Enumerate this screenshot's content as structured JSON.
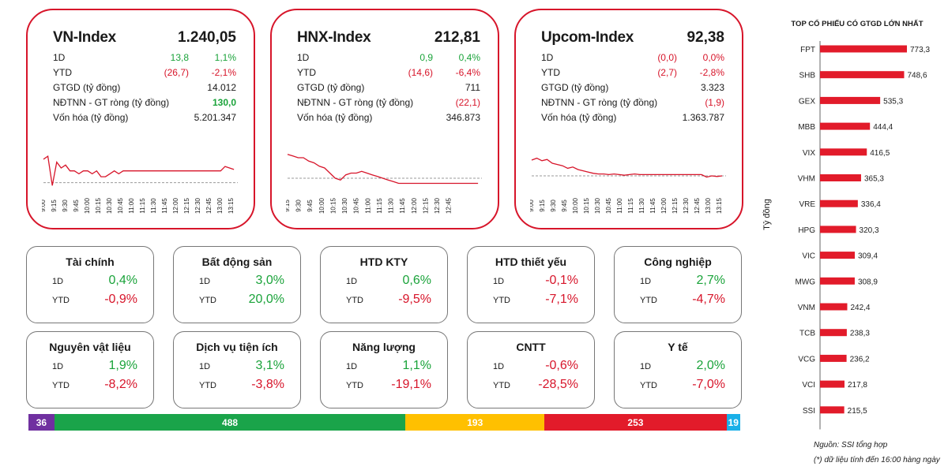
{
  "indices": [
    {
      "name": "VN-Index",
      "value": "1.240,05",
      "d1_label": "1D",
      "d1_change": "13,8",
      "d1_pct": "1,1%",
      "d1_dir": "pos",
      "ytd_label": "YTD",
      "ytd_change": "(26,7)",
      "ytd_pct": "-2,1%",
      "ytd_dir": "neg",
      "gtgd_label": "GTGD (tỷ đồng)",
      "gtgd": "14.012",
      "ndtnn_label": "NĐTNN - GT ròng (tỷ đồng)",
      "ndtnn": "130,0",
      "ndtnn_dir": "pos",
      "vonhoa_label": "Vốn hóa (tỷ đồng)",
      "vonhoa": "5.201.347",
      "times": [
        "9:00",
        "9:15",
        "9:30",
        "9:45",
        "10:00",
        "10:15",
        "10:30",
        "10:45",
        "11:00",
        "11:15",
        "11:30",
        "11:45",
        "12:00",
        "12:15",
        "12:30",
        "12:45",
        "13:00",
        "13:15"
      ],
      "reference": 0.0,
      "line": [
        8,
        9,
        -1,
        7,
        5,
        6,
        4,
        4,
        3,
        4,
        4,
        3,
        4,
        2,
        2,
        3,
        4,
        3,
        4,
        4,
        4,
        4,
        4,
        4,
        4,
        4,
        4,
        4,
        4,
        4,
        4,
        4,
        4,
        4,
        4,
        4,
        4,
        4,
        4,
        4,
        4,
        5.5,
        5,
        4.5
      ],
      "ymin": -2,
      "ymax": 12
    },
    {
      "name": "HNX-Index",
      "value": "212,81",
      "d1_label": "1D",
      "d1_change": "0,9",
      "d1_pct": "0,4%",
      "d1_dir": "pos",
      "ytd_label": "YTD",
      "ytd_change": "(14,6)",
      "ytd_pct": "-6,4%",
      "ytd_dir": "neg",
      "gtgd_label": "GTGD (tỷ đồng)",
      "gtgd": "711",
      "ndtnn_label": "NĐTNN - GT ròng (tỷ đồng)",
      "ndtnn": "(22,1)",
      "ndtnn_dir": "neg",
      "vonhoa_label": "Vốn hóa (tỷ đồng)",
      "vonhoa": "346.873",
      "times": [
        "9:15",
        "9:30",
        "9:45",
        "10:00",
        "10:15",
        "10:30",
        "10:45",
        "11:00",
        "11:15",
        "11:30",
        "11:45",
        "12:00",
        "12:15",
        "12:30",
        "12:45"
      ],
      "reference": 0.0,
      "line": [
        1.4,
        1.3,
        1.2,
        1.2,
        1.0,
        0.9,
        0.7,
        0.6,
        0.3,
        0.0,
        -0.1,
        0.2,
        0.3,
        0.3,
        0.4,
        0.3,
        0.2,
        0.1,
        0.0,
        -0.1,
        -0.2,
        -0.3,
        -0.3,
        -0.3,
        -0.3,
        -0.3,
        -0.3,
        -0.3,
        -0.3,
        -0.3,
        -0.3,
        -0.3,
        -0.3,
        -0.3,
        -0.3,
        -0.3,
        -0.3
      ],
      "ymin": -0.6,
      "ymax": 1.8
    },
    {
      "name": "Upcom-Index",
      "value": "92,38",
      "d1_label": "1D",
      "d1_change": "(0,0)",
      "d1_pct": "0,0%",
      "d1_dir": "neg",
      "ytd_label": "YTD",
      "ytd_change": "(2,7)",
      "ytd_pct": "-2,8%",
      "ytd_dir": "neg",
      "gtgd_label": "GTGD (tỷ đồng)",
      "gtgd": "3.323",
      "ndtnn_label": "NĐTNN - GT ròng (tỷ đồng)",
      "ndtnn": "(1,9)",
      "ndtnn_dir": "neg",
      "vonhoa_label": "Vốn hóa (tỷ đồng)",
      "vonhoa": "1.363.787",
      "times": [
        "9:00",
        "9:15",
        "9:30",
        "9:45",
        "10:00",
        "10:15",
        "10:30",
        "10:45",
        "11:00",
        "11:15",
        "11:30",
        "11:45",
        "12:00",
        "12:15",
        "12:30",
        "12:45",
        "13:00",
        "13:15"
      ],
      "reference": 0.0,
      "line": [
        0.25,
        0.28,
        0.24,
        0.26,
        0.2,
        0.18,
        0.16,
        0.12,
        0.14,
        0.1,
        0.08,
        0.06,
        0.04,
        0.03,
        0.03,
        0.02,
        0.03,
        0.02,
        0.01,
        0.02,
        0.03,
        0.02,
        0.02,
        0.02,
        0.02,
        0.02,
        0.02,
        0.02,
        0.02,
        0.02,
        0.02,
        0.02,
        0.02,
        0.02,
        -0.02,
        0.0,
        -0.01,
        0.0
      ],
      "ymin": -0.2,
      "ymax": 0.45
    }
  ],
  "sectors": [
    {
      "name": "Tài chính",
      "d1_label": "1D",
      "d1": "0,4%",
      "d1_dir": "pos",
      "ytd_label": "YTD",
      "ytd": "-0,9%",
      "ytd_dir": "neg"
    },
    {
      "name": "Bất động sản",
      "d1_label": "1D",
      "d1": "3,0%",
      "d1_dir": "pos",
      "ytd_label": "YTD",
      "ytd": "20,0%",
      "ytd_dir": "pos"
    },
    {
      "name": "HTD KTY",
      "d1_label": "1D",
      "d1": "0,6%",
      "d1_dir": "pos",
      "ytd_label": "YTD",
      "ytd": "-9,5%",
      "ytd_dir": "neg"
    },
    {
      "name": "HTD thiết yếu",
      "d1_label": "1D",
      "d1": "-0,1%",
      "d1_dir": "neg",
      "ytd_label": "YTD",
      "ytd": "-7,1%",
      "ytd_dir": "neg"
    },
    {
      "name": "Công nghiệp",
      "d1_label": "1D",
      "d1": "2,7%",
      "d1_dir": "pos",
      "ytd_label": "YTD",
      "ytd": "-4,7%",
      "ytd_dir": "neg"
    },
    {
      "name": "Nguyên vật liệu",
      "d1_label": "1D",
      "d1": "1,9%",
      "d1_dir": "pos",
      "ytd_label": "YTD",
      "ytd": "-8,2%",
      "ytd_dir": "neg"
    },
    {
      "name": "Dịch vụ tiện ích",
      "d1_label": "1D",
      "d1": "3,1%",
      "d1_dir": "pos",
      "ytd_label": "YTD",
      "ytd": "-3,8%",
      "ytd_dir": "neg"
    },
    {
      "name": "Năng lượng",
      "d1_label": "1D",
      "d1": "1,1%",
      "d1_dir": "pos",
      "ytd_label": "YTD",
      "ytd": "-19,1%",
      "ytd_dir": "neg"
    },
    {
      "name": "CNTT",
      "d1_label": "1D",
      "d1": "-0,6%",
      "d1_dir": "neg",
      "ytd_label": "YTD",
      "ytd": "-28,5%",
      "ytd_dir": "neg"
    },
    {
      "name": "Y tế",
      "d1_label": "1D",
      "d1": "2,0%",
      "d1_dir": "pos",
      "ytd_label": "YTD",
      "ytd": "-7,0%",
      "ytd_dir": "neg"
    }
  ],
  "breadth": [
    {
      "label": "36",
      "value": 36,
      "color": "#7030a0"
    },
    {
      "label": "488",
      "value": 488,
      "color": "#1aa44a"
    },
    {
      "label": "193",
      "value": 193,
      "color": "#ffc000"
    },
    {
      "label": "253",
      "value": 253,
      "color": "#e21b2a"
    },
    {
      "label": "19",
      "value": 19,
      "color": "#1ab0e8"
    }
  ],
  "colors": {
    "accent": "#d7152a",
    "positive": "#1aa33a",
    "negative": "#d7152a",
    "bar": "#e21b2a",
    "reference_line": "#999999"
  },
  "chart_data": {
    "type": "bar",
    "orientation": "horizontal",
    "title": "TOP CỔ PHIẾU CÓ GTGD LỚN NHẤT",
    "ylabel": "Tỷ đồng",
    "categories": [
      "FPT",
      "SHB",
      "GEX",
      "MBB",
      "VIX",
      "VHM",
      "VRE",
      "HPG",
      "VIC",
      "MWG",
      "VNM",
      "TCB",
      "VCG",
      "VCI",
      "SSI"
    ],
    "values": [
      773.3,
      748.6,
      535.3,
      444.4,
      416.5,
      365.3,
      336.4,
      320.3,
      309.4,
      308.9,
      242.4,
      238.3,
      236.2,
      217.8,
      215.5
    ],
    "value_labels": [
      "773,3",
      "748,6",
      "535,3",
      "444,4",
      "416,5",
      "365,3",
      "336,4",
      "320,3",
      "309,4",
      "308,9",
      "242,4",
      "238,3",
      "236,2",
      "217,8",
      "215,5"
    ],
    "xlim": [
      0,
      773.3
    ]
  },
  "footer": {
    "source": "Nguồn: SSI tổng hợp",
    "note": "(*) dữ liệu tính đến 16:00 hàng ngày"
  }
}
